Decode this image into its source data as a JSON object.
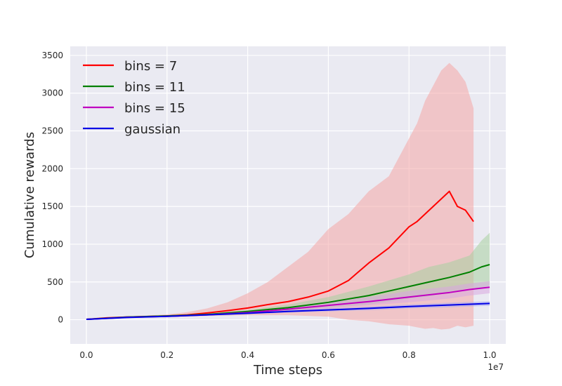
{
  "chart_data": {
    "type": "line",
    "title": "",
    "xlabel": "Time steps",
    "ylabel": "Cumulative rewards",
    "x_offset_label": "1e7",
    "xlim": [
      -0.04,
      1.04
    ],
    "ylim": [
      -320,
      3620
    ],
    "xticks": [
      0.0,
      0.2,
      0.4,
      0.6,
      0.8,
      1.0
    ],
    "xtick_labels": [
      "0.0",
      "0.2",
      "0.4",
      "0.6",
      "0.8",
      "1.0"
    ],
    "yticks": [
      0,
      500,
      1000,
      1500,
      2000,
      2500,
      3000,
      3500
    ],
    "ytick_labels": [
      "0",
      "500",
      "1000",
      "1500",
      "2000",
      "2500",
      "3000",
      "3500"
    ],
    "grid": true,
    "legend_position": "top-left",
    "series": [
      {
        "name": "bins = 7",
        "color": "#ff0000",
        "band_color": "#f4a6a6",
        "x": [
          0.0,
          0.05,
          0.1,
          0.15,
          0.2,
          0.25,
          0.3,
          0.35,
          0.4,
          0.45,
          0.5,
          0.55,
          0.6,
          0.65,
          0.7,
          0.75,
          0.8,
          0.82,
          0.84,
          0.86,
          0.88,
          0.9,
          0.92,
          0.94,
          0.96
        ],
        "y": [
          5,
          25,
          35,
          42,
          50,
          65,
          90,
          120,
          155,
          200,
          240,
          300,
          380,
          520,
          750,
          950,
          1230,
          1300,
          1400,
          1500,
          1600,
          1700,
          1500,
          1450,
          1300
        ],
        "upper": [
          5,
          30,
          45,
          55,
          70,
          100,
          150,
          230,
          350,
          500,
          700,
          900,
          1200,
          1400,
          1700,
          1900,
          2400,
          2600,
          2900,
          3100,
          3300,
          3400,
          3300,
          3150,
          2800
        ],
        "lower": [
          5,
          20,
          28,
          32,
          35,
          40,
          50,
          55,
          60,
          60,
          60,
          50,
          40,
          0,
          -20,
          -60,
          -80,
          -100,
          -120,
          -110,
          -130,
          -120,
          -80,
          -100,
          -80
        ]
      },
      {
        "name": "bins = 11",
        "color": "#008000",
        "band_color": "#a8d0a0",
        "x": [
          0.0,
          0.1,
          0.2,
          0.3,
          0.4,
          0.5,
          0.6,
          0.7,
          0.75,
          0.8,
          0.85,
          0.9,
          0.95,
          0.98,
          1.0
        ],
        "y": [
          5,
          35,
          50,
          70,
          110,
          160,
          230,
          320,
          380,
          440,
          500,
          560,
          630,
          700,
          730
        ],
        "upper": [
          5,
          38,
          55,
          80,
          130,
          200,
          300,
          440,
          520,
          600,
          700,
          760,
          850,
          1050,
          1150
        ],
        "lower": [
          5,
          32,
          45,
          60,
          90,
          120,
          160,
          200,
          240,
          280,
          310,
          360,
          420,
          420,
          450
        ]
      },
      {
        "name": "bins = 15",
        "color": "#c000c0",
        "band_color": "#d8a8e0",
        "x": [
          0.0,
          0.1,
          0.2,
          0.3,
          0.4,
          0.5,
          0.6,
          0.7,
          0.8,
          0.9,
          0.95,
          1.0
        ],
        "y": [
          5,
          32,
          45,
          65,
          95,
          140,
          190,
          240,
          300,
          360,
          400,
          430
        ],
        "upper": [
          5,
          35,
          50,
          75,
          115,
          170,
          240,
          300,
          380,
          440,
          480,
          510
        ],
        "lower": [
          5,
          30,
          40,
          55,
          80,
          110,
          150,
          190,
          230,
          280,
          320,
          350
        ]
      },
      {
        "name": "gaussian",
        "color": "#0000e6",
        "band_color": "#a8a8f0",
        "x": [
          0.0,
          0.1,
          0.2,
          0.3,
          0.4,
          0.5,
          0.6,
          0.7,
          0.8,
          0.9,
          1.0
        ],
        "y": [
          5,
          30,
          45,
          65,
          85,
          110,
          130,
          150,
          175,
          195,
          215
        ],
        "upper": [
          5,
          33,
          50,
          72,
          95,
          125,
          150,
          175,
          200,
          225,
          245
        ],
        "lower": [
          5,
          27,
          40,
          58,
          75,
          95,
          110,
          125,
          150,
          165,
          185
        ]
      }
    ]
  }
}
